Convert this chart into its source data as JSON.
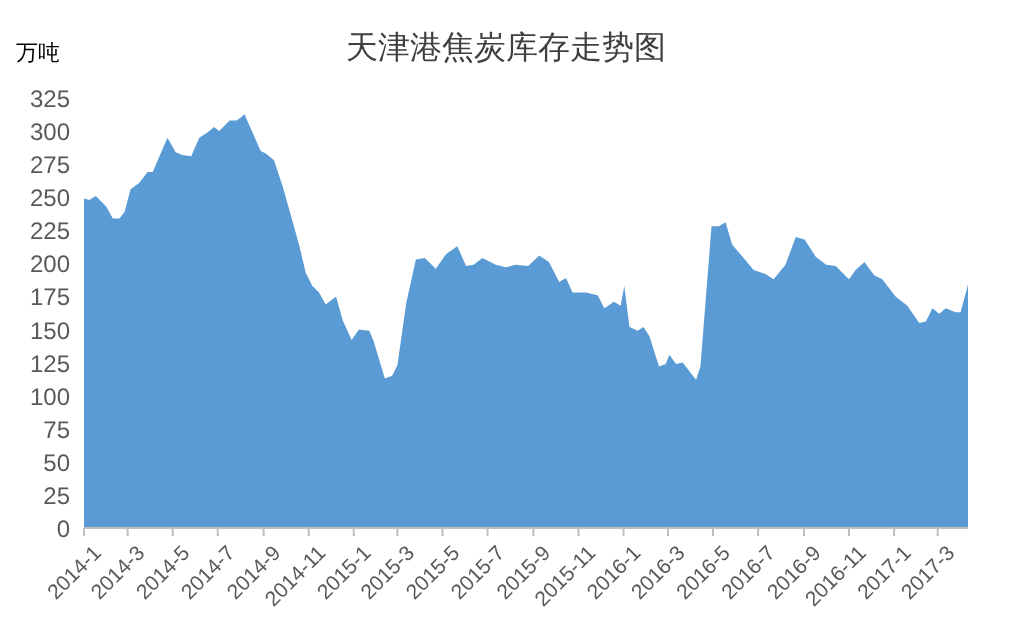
{
  "chart_data": {
    "type": "area",
    "title": "天津港焦炭库存走势图",
    "ylabel": "万吨",
    "color": "#5b9bd5",
    "x": [
      "2014-01-01",
      "2014-01-08",
      "2014-01-17",
      "2014-01-31",
      "2014-02-09",
      "2014-02-18",
      "2014-02-25",
      "2014-03-05",
      "2014-03-17",
      "2014-03-28",
      "2014-04-04",
      "2014-04-17",
      "2014-04-24",
      "2014-05-05",
      "2014-05-14",
      "2014-05-26",
      "2014-06-06",
      "2014-06-17",
      "2014-06-26",
      "2014-07-03",
      "2014-07-17",
      "2014-07-26",
      "2014-08-01",
      "2014-08-06",
      "2014-08-17",
      "2014-08-28",
      "2014-09-04",
      "2014-09-15",
      "2014-09-27",
      "2014-10-08",
      "2014-10-19",
      "2014-10-28",
      "2014-11-06",
      "2014-11-15",
      "2014-11-24",
      "2014-12-08",
      "2014-12-17",
      "2014-12-29",
      "2015-01-08",
      "2015-01-22",
      "2015-01-28",
      "2015-02-12",
      "2015-02-22",
      "2015-03-01",
      "2015-03-13",
      "2015-03-26",
      "2015-04-07",
      "2015-04-22",
      "2015-05-06",
      "2015-05-21",
      "2015-06-02",
      "2015-06-12",
      "2015-06-24",
      "2015-07-12",
      "2015-07-26",
      "2015-08-08",
      "2015-08-25",
      "2015-09-09",
      "2015-09-22",
      "2015-10-06",
      "2015-10-15",
      "2015-10-24",
      "2015-11-11",
      "2015-11-27",
      "2015-12-06",
      "2015-12-19",
      "2015-12-28",
      "2016-01-02",
      "2016-01-09",
      "2016-01-20",
      "2016-01-28",
      "2016-02-05",
      "2016-02-18",
      "2016-02-27",
      "2016-03-03",
      "2016-03-12",
      "2016-03-21",
      "2016-04-08",
      "2016-04-14",
      "2016-04-29",
      "2016-05-09",
      "2016-05-18",
      "2016-05-27",
      "2016-06-10",
      "2016-06-25",
      "2016-07-11",
      "2016-07-22",
      "2016-08-07",
      "2016-08-21",
      "2016-09-02",
      "2016-09-17",
      "2016-10-01",
      "2016-10-14",
      "2016-11-01",
      "2016-11-10",
      "2016-11-22",
      "2016-12-05",
      "2016-12-16",
      "2017-01-03",
      "2017-01-19",
      "2017-02-04",
      "2017-02-13",
      "2017-02-22",
      "2017-03-03",
      "2017-03-12",
      "2017-03-25",
      "2017-04-01",
      "2017-04-11"
    ],
    "values": [
      249,
      248,
      251,
      243,
      234,
      234,
      239,
      256,
      261,
      269,
      269,
      286,
      295,
      284,
      282,
      281,
      295,
      299,
      303,
      300,
      308,
      308,
      310,
      313,
      299,
      285,
      283,
      278,
      258,
      236,
      214,
      193,
      183,
      178,
      169,
      175,
      157,
      142,
      150,
      149,
      141,
      113,
      115,
      123,
      170,
      203,
      204,
      196,
      207,
      213,
      198,
      199,
      204,
      199,
      197,
      199,
      198,
      206,
      201,
      186,
      189,
      178,
      178,
      176,
      166,
      171,
      168,
      183,
      152,
      149,
      152,
      145,
      122,
      124,
      131,
      124,
      125,
      112,
      122,
      228,
      228,
      231,
      214,
      205,
      195,
      192,
      188,
      199,
      220,
      218,
      205,
      199,
      198,
      188,
      195,
      201,
      191,
      188,
      175,
      168,
      155,
      156,
      166,
      162,
      166,
      163,
      163,
      184
    ],
    "xlim": [
      "2014-01-01",
      "2017-04-11"
    ],
    "xticks": [
      {
        "value": "2014-01",
        "label": "2014-1"
      },
      {
        "value": "2014-03",
        "label": "2014-3"
      },
      {
        "value": "2014-05",
        "label": "2014-5"
      },
      {
        "value": "2014-07",
        "label": "2014-7"
      },
      {
        "value": "2014-09",
        "label": "2014-9"
      },
      {
        "value": "2014-11",
        "label": "2014-11"
      },
      {
        "value": "2015-01",
        "label": "2015-1"
      },
      {
        "value": "2015-03",
        "label": "2015-3"
      },
      {
        "value": "2015-05",
        "label": "2015-5"
      },
      {
        "value": "2015-07",
        "label": "2015-7"
      },
      {
        "value": "2015-09",
        "label": "2015-9"
      },
      {
        "value": "2015-11",
        "label": "2015-11"
      },
      {
        "value": "2016-01",
        "label": "2016-1"
      },
      {
        "value": "2016-03",
        "label": "2016-3"
      },
      {
        "value": "2016-05",
        "label": "2016-5"
      },
      {
        "value": "2016-07",
        "label": "2016-7"
      },
      {
        "value": "2016-09",
        "label": "2016-9"
      },
      {
        "value": "2016-11",
        "label": "2016-11"
      },
      {
        "value": "2017-01",
        "label": "2017-1"
      },
      {
        "value": "2017-03",
        "label": "2017-3"
      }
    ],
    "ylim": [
      0,
      325
    ],
    "yticks": [
      0,
      25,
      50,
      75,
      100,
      125,
      150,
      175,
      200,
      225,
      250,
      275,
      300,
      325
    ]
  }
}
